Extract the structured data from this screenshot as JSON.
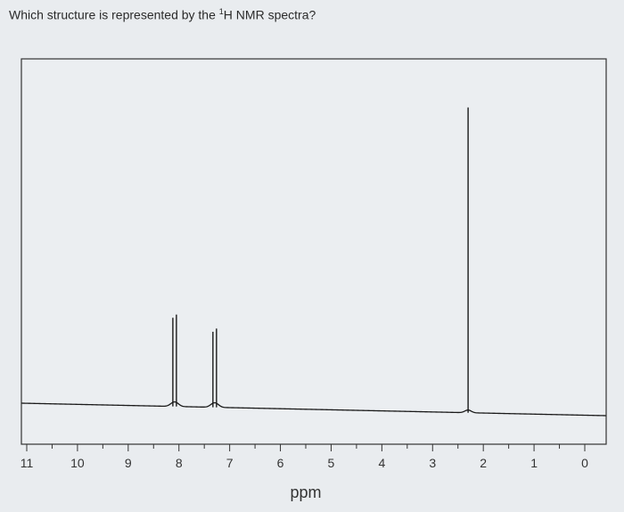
{
  "question": {
    "prefix": "Which structure is represented by the ",
    "superscript": "1",
    "suffix": "H NMR spectra?"
  },
  "chart_data": {
    "type": "line",
    "title": "",
    "xlabel": "ppm",
    "ylabel": "",
    "x_reversed": true,
    "xlim": [
      11,
      0
    ],
    "xticks": [
      11,
      10,
      9,
      8,
      7,
      6,
      5,
      4,
      3,
      2,
      1,
      0
    ],
    "grid": false,
    "peaks": [
      {
        "ppm": 8.12,
        "height": 0.27
      },
      {
        "ppm": 8.05,
        "height": 0.28
      },
      {
        "ppm": 7.33,
        "height": 0.23
      },
      {
        "ppm": 7.26,
        "height": 0.24
      },
      {
        "ppm": 2.3,
        "height": 0.93
      }
    ],
    "colors": {
      "trace": "#1a1a1a",
      "frame": "#333333",
      "plot_bg": "#ebeef1"
    }
  }
}
